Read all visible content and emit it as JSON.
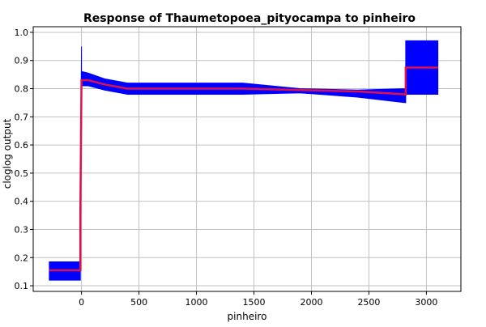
{
  "chart_data": {
    "type": "line",
    "title": "Response of Thaumetopoea_pityocampa to pinheiro",
    "xlabel": "pinheiro",
    "ylabel": "cloglog output",
    "xlim": [
      -420,
      3300
    ],
    "ylim": [
      0.08,
      1.02
    ],
    "xticks": [
      0,
      500,
      1000,
      1500,
      2000,
      2500,
      3000
    ],
    "yticks": [
      0.1,
      0.2,
      0.3,
      0.4,
      0.5,
      0.6,
      0.7,
      0.8,
      0.9,
      1.0
    ],
    "ytick_labels": [
      "0.1",
      "0.2",
      "0.3",
      "0.4",
      "0.5",
      "0.6",
      "0.7",
      "0.8",
      "0.9",
      "1.0"
    ],
    "grid": true,
    "legend": "none",
    "colors": {
      "band": "#0000ff",
      "line": "#e0104f",
      "grid": "#c0c0c0"
    },
    "series": [
      {
        "x": [
          -280,
          -10,
          -10,
          0,
          10,
          60,
          200,
          400,
          800,
          1400,
          1900,
          2400,
          2820,
          2820,
          3100
        ],
        "values": [
          0.155,
          0.155,
          0.35,
          0.83,
          0.83,
          0.83,
          0.815,
          0.8,
          0.8,
          0.8,
          0.795,
          0.79,
          0.78,
          0.875,
          0.875
        ]
      }
    ],
    "band": {
      "x": [
        -280,
        -10,
        -10,
        0,
        0,
        10,
        60,
        200,
        400,
        800,
        1400,
        1900,
        2400,
        2820,
        2820,
        3100
      ],
      "upper": [
        0.185,
        0.185,
        0.48,
        0.95,
        0.86,
        0.86,
        0.855,
        0.835,
        0.82,
        0.82,
        0.82,
        0.8,
        0.795,
        0.8,
        0.97,
        0.97
      ],
      "lower": [
        0.12,
        0.12,
        0.33,
        0.67,
        0.81,
        0.81,
        0.81,
        0.795,
        0.78,
        0.78,
        0.78,
        0.785,
        0.77,
        0.75,
        0.78,
        0.78
      ]
    }
  }
}
